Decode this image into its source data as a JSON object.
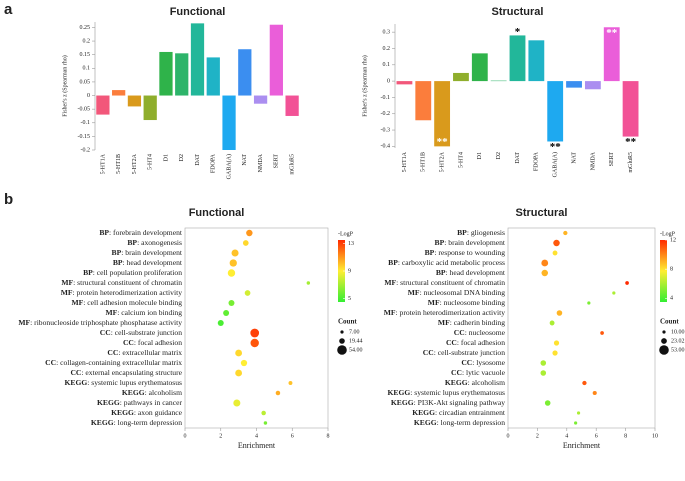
{
  "panels": [
    "a",
    "b"
  ],
  "chart_data": [
    {
      "type": "bar",
      "title": "Functional",
      "ylabel": "Fisher's z (Spearman rho)",
      "categories": [
        "5-HT1A",
        "5-HT1B",
        "5-HT2A",
        "5-HT4",
        "D1",
        "D2",
        "DAT",
        "FDOPA",
        "GABA(A)",
        "NAT",
        "NMDA",
        "SERT",
        "mGluR5"
      ],
      "values": [
        -0.07,
        0.02,
        -0.04,
        -0.09,
        0.16,
        0.155,
        0.265,
        0.14,
        -0.2,
        0.17,
        -0.03,
        0.26,
        -0.075
      ],
      "colors": [
        "#f2577a",
        "#fb7d3c",
        "#d99a1c",
        "#8fae2c",
        "#2fb34a",
        "#2db46a",
        "#22b79a",
        "#1fb3c6",
        "#1ea9f0",
        "#3b8ef0",
        "#ab8ef0",
        "#ea5ed9",
        "#f25296"
      ],
      "ylim": [
        -0.2,
        0.27
      ],
      "yticks": [
        -0.2,
        -0.15,
        -0.1,
        -0.05,
        0,
        0.05,
        0.1,
        0.15,
        0.2,
        0.25
      ]
    },
    {
      "type": "bar",
      "title": "Structural",
      "ylabel": "Fisher's z (Spearman rho)",
      "categories": [
        "5-HT1A",
        "5-HT1B",
        "5-HT2A",
        "5-HT4",
        "D1",
        "D2",
        "DAT",
        "FDOPA",
        "GABA(A)",
        "NAT",
        "NMDA",
        "SERT",
        "mGluR5"
      ],
      "values": [
        -0.02,
        -0.24,
        -0.4,
        0.05,
        0.17,
        0.003,
        0.28,
        0.25,
        -0.37,
        -0.04,
        -0.05,
        0.33,
        -0.34
      ],
      "colors": [
        "#f2577a",
        "#fb7d3c",
        "#d99a1c",
        "#8fae2c",
        "#2fb34a",
        "#2db46a",
        "#22b79a",
        "#1fb3c6",
        "#1ea9f0",
        "#3b8ef0",
        "#ab8ef0",
        "#ea5ed9",
        "#f25296"
      ],
      "significance": [
        null,
        null,
        "**",
        null,
        null,
        null,
        "*",
        null,
        "**",
        null,
        null,
        "**",
        "**"
      ],
      "significance_color": [
        null,
        null,
        "#ffffff",
        null,
        null,
        null,
        "#000000",
        null,
        "#000000",
        null,
        null,
        "#ffffff",
        "#000000"
      ],
      "ylim": [
        -0.41,
        0.35
      ],
      "yticks": [
        -0.4,
        -0.3,
        -0.2,
        -0.1,
        0,
        0.1,
        0.2,
        0.3
      ]
    },
    {
      "type": "bubble",
      "title": "Functional",
      "xlabel": "Enrichment",
      "categories": [
        [
          "BP",
          ": forebrain development"
        ],
        [
          "BP",
          ": axonogenesis"
        ],
        [
          "BP",
          ": brain development"
        ],
        [
          "BP",
          ": head development"
        ],
        [
          "BP",
          ": cell population proliferation"
        ],
        [
          "MF",
          ": structural constituent of chromatin"
        ],
        [
          "MF",
          ": protein heterodimerization activity"
        ],
        [
          "MF",
          ": cell adhesion molecule binding"
        ],
        [
          "MF",
          ": calcium ion binding"
        ],
        [
          "MF",
          ": ribonucleoside triphosphate phosphatase activity"
        ],
        [
          "CC",
          ": cell-substrate junction"
        ],
        [
          "CC",
          ": focal adhesion"
        ],
        [
          "CC",
          ": extracellular matrix"
        ],
        [
          "CC",
          ": collagen-containing extracellular matrix"
        ],
        [
          "CC",
          ": external encapsulating structure"
        ],
        [
          "KEGG",
          ": systemic lupus erythematosus"
        ],
        [
          "KEGG",
          ": alcoholism"
        ],
        [
          "KEGG",
          ": pathways in cancer"
        ],
        [
          "KEGG",
          ": axon guidance"
        ],
        [
          "KEGG",
          ": long-term depression"
        ]
      ],
      "enrichment": [
        3.6,
        3.4,
        2.8,
        2.7,
        2.6,
        6.9,
        3.5,
        2.6,
        2.3,
        2.0,
        3.9,
        3.9,
        3.0,
        3.3,
        3.0,
        5.9,
        5.2,
        2.9,
        4.4,
        4.5
      ],
      "count": [
        25,
        20,
        30,
        32,
        33,
        8,
        20,
        22,
        22,
        22,
        45,
        42,
        28,
        24,
        28,
        10,
        13,
        30,
        13,
        8
      ],
      "logp": [
        11,
        9.5,
        10,
        10,
        9,
        7,
        8,
        6,
        5.5,
        5,
        13,
        12.5,
        9.5,
        9,
        9.5,
        10,
        10.5,
        8.5,
        7.5,
        6
      ],
      "xlim": [
        0,
        8
      ],
      "xticks": [
        0,
        2,
        4,
        6,
        8
      ],
      "color_legend": {
        "title": "-LogP",
        "lim": [
          4.5,
          13.5
        ],
        "ticks": [
          5,
          9,
          13
        ],
        "colors": [
          "#33ee33",
          "#ffee33",
          "#ff2a00"
        ]
      },
      "size_legend": {
        "title": "Count",
        "ticks": [
          {
            "value": 7,
            "label": "7.00"
          },
          {
            "value": 19.44,
            "label": "19.44"
          },
          {
            "value": 54,
            "label": "54.00"
          }
        ]
      }
    },
    {
      "type": "bubble",
      "title": "Structural",
      "xlabel": "Enrichment",
      "categories": [
        [
          "BP",
          ": gliogenesis"
        ],
        [
          "BP",
          ": brain development"
        ],
        [
          "BP",
          ": response to wounding"
        ],
        [
          "BP",
          ": carboxylic acid metabolic process"
        ],
        [
          "BP",
          ": head development"
        ],
        [
          "MF",
          ": structural constituent of chromatin"
        ],
        [
          "MF",
          ": nucleosomal DNA binding"
        ],
        [
          "MF",
          ": nucleosome binding"
        ],
        [
          "MF",
          ": protein heterodimerization activity"
        ],
        [
          "MF",
          ": cadherin binding"
        ],
        [
          "CC",
          ": nucleosome"
        ],
        [
          "CC",
          ": focal adhesion"
        ],
        [
          "CC",
          ": cell-substrate junction"
        ],
        [
          "CC",
          ": lysosome"
        ],
        [
          "CC",
          ": lytic vacuole"
        ],
        [
          "KEGG",
          ": alcoholism"
        ],
        [
          "KEGG",
          ": systemic lupus erythematosus"
        ],
        [
          "KEGG",
          ": PI3K-Akt signaling pathway"
        ],
        [
          "KEGG",
          ": circadian entrainment"
        ],
        [
          "KEGG",
          ": long-term depression"
        ]
      ],
      "enrichment": [
        3.9,
        3.3,
        3.2,
        2.5,
        2.5,
        8.1,
        7.2,
        5.5,
        3.5,
        3.0,
        6.4,
        3.3,
        3.2,
        2.4,
        2.4,
        5.2,
        5.9,
        2.7,
        4.8,
        4.6
      ],
      "count": [
        15,
        28,
        18,
        30,
        28,
        12,
        10,
        10,
        22,
        18,
        12,
        20,
        20,
        22,
        22,
        15,
        14,
        22,
        10,
        10
      ],
      "logp": [
        9,
        11,
        8,
        10,
        9,
        12,
        6,
        5,
        9,
        6,
        11,
        8,
        8,
        6,
        6,
        11,
        10,
        5,
        6,
        5
      ],
      "xlim": [
        0,
        10
      ],
      "xticks": [
        0,
        2,
        4,
        6,
        8,
        10
      ],
      "color_legend": {
        "title": "-LogP",
        "lim": [
          3.5,
          12
        ],
        "ticks": [
          4,
          8,
          12
        ],
        "colors": [
          "#33ee33",
          "#ffee33",
          "#ff2a00"
        ]
      },
      "size_legend": {
        "title": "Count",
        "ticks": [
          {
            "value": 10,
            "label": "10.00"
          },
          {
            "value": 23.02,
            "label": "23.02"
          },
          {
            "value": 53,
            "label": "53.00"
          }
        ]
      }
    }
  ]
}
